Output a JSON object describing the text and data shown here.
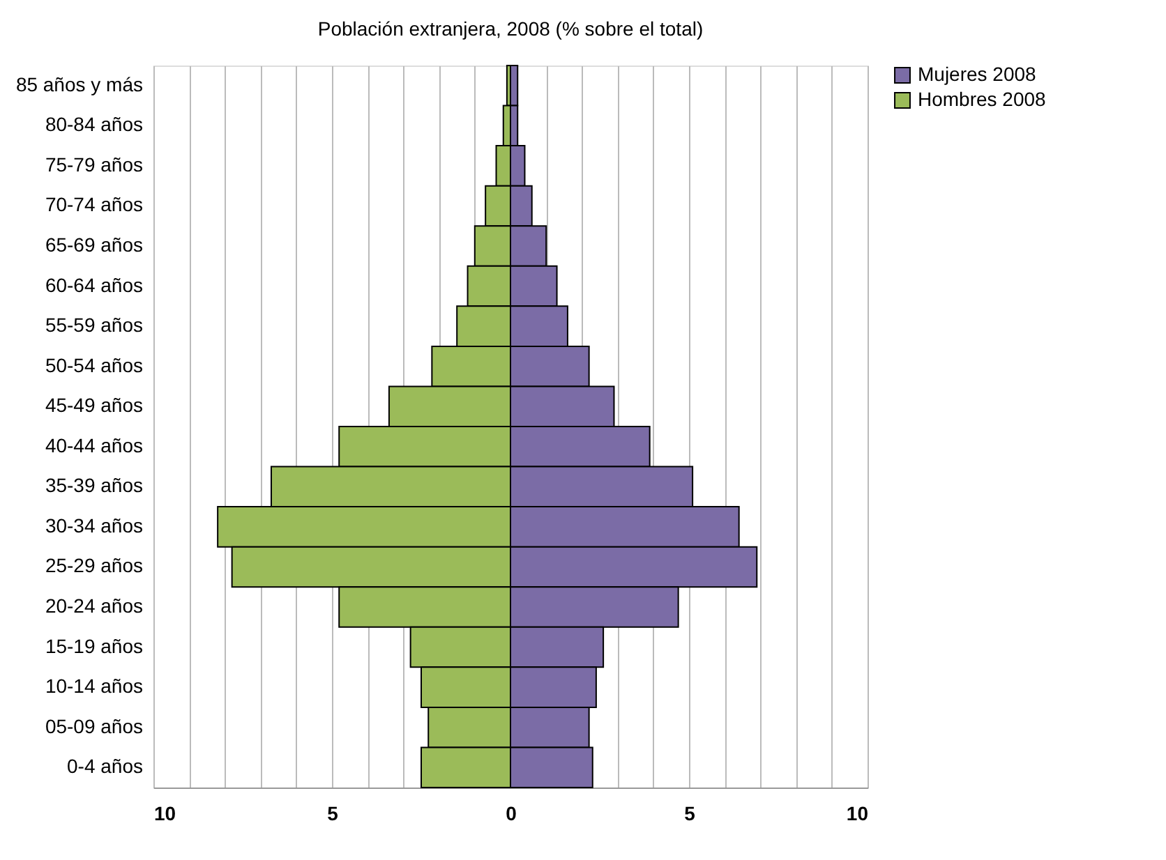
{
  "chart_data": {
    "type": "bar",
    "orientation": "horizontal",
    "stacked": true,
    "title": "Población extranjera, 2008 (% sobre el total)",
    "categories": [
      "85 años y más",
      "80-84 años",
      "75-79 años",
      "70-74 años",
      "65-69 años",
      "60-64 años",
      "55-59 años",
      "50-54 años",
      "45-49 años",
      "40-44 años",
      "35-39 años",
      "30-34 años",
      "25-29 años",
      "20-24 años",
      "15-19 años",
      "10-14 años",
      "05-09 años",
      "0-4 años"
    ],
    "series": [
      {
        "name": "Mujeres 2008",
        "color": "#7b6ca6",
        "values": [
          0.2,
          0.2,
          0.4,
          0.6,
          1.0,
          1.3,
          1.6,
          2.2,
          2.9,
          3.9,
          5.1,
          6.4,
          6.9,
          4.7,
          2.6,
          2.4,
          2.2,
          2.3
        ]
      },
      {
        "name": "Hombres 2008",
        "color": "#9bbb59",
        "values": [
          -0.1,
          -0.2,
          -0.4,
          -0.7,
          -1.0,
          -1.2,
          -1.5,
          -2.2,
          -3.4,
          -4.8,
          -6.7,
          -8.2,
          -7.8,
          -4.8,
          -2.8,
          -2.5,
          -2.3,
          -2.5
        ]
      }
    ],
    "xlim": [
      -10,
      10
    ],
    "xticks": [
      {
        "value": -10,
        "label": "10"
      },
      {
        "value": -9,
        "label": null
      },
      {
        "value": -8,
        "label": null
      },
      {
        "value": -7,
        "label": null
      },
      {
        "value": -6,
        "label": null
      },
      {
        "value": -5,
        "label": "5"
      },
      {
        "value": -4,
        "label": null
      },
      {
        "value": -3,
        "label": null
      },
      {
        "value": -2,
        "label": null
      },
      {
        "value": -1,
        "label": null
      },
      0,
      {
        "value": 1,
        "label": null
      },
      {
        "value": 2,
        "label": null
      },
      {
        "value": 3,
        "label": null
      },
      {
        "value": 4,
        "label": null
      },
      5,
      {
        "value": 6,
        "label": null
      },
      {
        "value": 7,
        "label": null
      },
      {
        "value": 8,
        "label": null
      },
      {
        "value": 9,
        "label": null
      },
      10
    ],
    "grid": "x",
    "legend": "right"
  }
}
